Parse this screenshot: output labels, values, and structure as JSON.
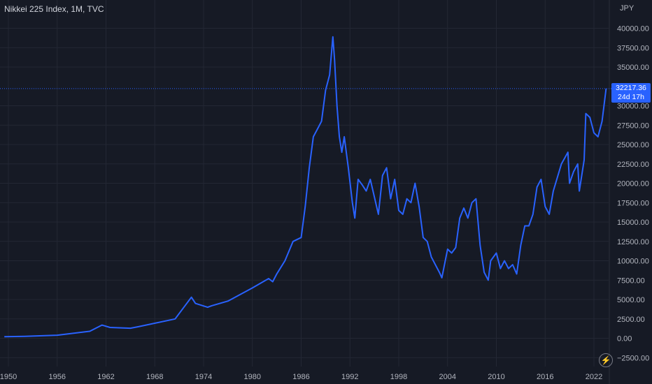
{
  "title": "Nikkei 225 Index, 1M, TVC",
  "currency": "JPY",
  "price_tag": {
    "price": "32217.36",
    "countdown": "24d 17h"
  },
  "colors": {
    "background": "#161a25",
    "line": "#2962ff",
    "grid": "#232734",
    "text": "#b2b5be"
  },
  "settings_icon": "lightning-icon",
  "chart_data": {
    "type": "line",
    "title": "Nikkei 225 Index, 1M, TVC",
    "series": [
      {
        "name": "Nikkei 225",
        "x": [
          1949.5,
          1952,
          1956,
          1960,
          1961.5,
          1962.5,
          1965,
          1966,
          1970.5,
          1972.5,
          1973,
          1974.5,
          1975,
          1977,
          1980,
          1982,
          1982.5,
          1983,
          1984,
          1985,
          1986,
          1986.5,
          1987,
          1987.5,
          1988,
          1988.5,
          1989,
          1989.5,
          1989.9,
          1990.1,
          1990.4,
          1990.7,
          1991,
          1991.3,
          1991.8,
          1992.3,
          1992.6,
          1993,
          1993.5,
          1994,
          1994.5,
          1995.5,
          1996,
          1996.5,
          1997,
          1997.5,
          1998,
          1998.5,
          1999,
          1999.5,
          2000,
          2000.5,
          2001,
          2001.5,
          2002,
          2002.5,
          2003,
          2003.3,
          2004,
          2004.5,
          2005,
          2005.5,
          2006,
          2006.5,
          2007,
          2007.5,
          2008,
          2008.5,
          2009,
          2009.3,
          2010,
          2010.5,
          2011,
          2011.5,
          2012,
          2012.5,
          2013,
          2013.5,
          2014,
          2014.5,
          2015,
          2015.5,
          2016,
          2016.5,
          2017,
          2018,
          2018.8,
          2019,
          2019.5,
          2020,
          2020.2,
          2020.8,
          2021,
          2021.5,
          2022,
          2022.5,
          2023,
          2023.5
        ],
        "values": [
          200,
          250,
          400,
          900,
          1700,
          1400,
          1300,
          1500,
          2500,
          5300,
          4500,
          4000,
          4200,
          4800,
          6500,
          7700,
          7300,
          8300,
          10000,
          12500,
          13000,
          17000,
          22000,
          26000,
          27000,
          28000,
          32000,
          34000,
          38900,
          36000,
          30000,
          26000,
          24000,
          26000,
          22000,
          17500,
          15500,
          20500,
          19800,
          19000,
          20500,
          16000,
          21000,
          22000,
          18000,
          20500,
          16500,
          16000,
          18000,
          17500,
          20000,
          17000,
          13000,
          12500,
          10500,
          9500,
          8500,
          7800,
          11500,
          11000,
          11700,
          15500,
          16800,
          15500,
          17500,
          18000,
          12000,
          8500,
          7500,
          10000,
          11000,
          9000,
          10000,
          9000,
          9500,
          8300,
          12000,
          14500,
          14500,
          16000,
          19500,
          20500,
          17000,
          16000,
          19000,
          22500,
          24000,
          20000,
          21500,
          22500,
          19000,
          23000,
          29000,
          28500,
          26500,
          26000,
          28000,
          32217.36
        ]
      }
    ],
    "xlabel": "",
    "ylabel": "",
    "xlim": [
      1949.5,
      2023.6
    ],
    "ylim": [
      -2500,
      41500
    ],
    "x_ticks": [
      "1950",
      "1956",
      "1962",
      "1968",
      "1974",
      "1980",
      "1986",
      "1992",
      "1998",
      "2004",
      "2010",
      "2016",
      "2022"
    ],
    "y_ticks": [
      "40000.00",
      "37500.00",
      "35000.00",
      "30000.00",
      "27500.00",
      "25000.00",
      "22500.00",
      "20000.00",
      "17500.00",
      "15000.00",
      "12500.00",
      "10000.00",
      "7500.00",
      "5000.00",
      "2500.00",
      "0.00",
      "−2500.00"
    ],
    "last_value": "32217.36",
    "grid": true,
    "legend": "none"
  }
}
